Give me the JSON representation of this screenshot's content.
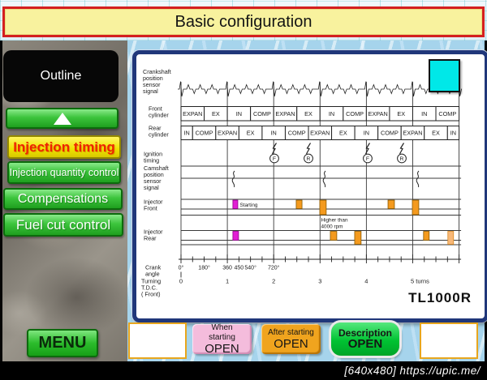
{
  "title": "Basic configuration",
  "sidebar": {
    "outline_label": "Outline",
    "items": [
      {
        "label": "Injection timing",
        "active": true
      },
      {
        "label": "Injection quantity control",
        "active": false
      },
      {
        "label": "Compensations",
        "active": false
      },
      {
        "label": "Fuel cut control",
        "active": false
      }
    ],
    "menu_label": "MENU"
  },
  "icons": {
    "up_arrow": "triangle-up",
    "magnifier": "magnifier-plus"
  },
  "bottom_buttons": [
    {
      "label_top": "When starting",
      "label_bottom": "OPEN",
      "color": "#f4bcdc"
    },
    {
      "label_top": "After starting",
      "label_bottom": "OPEN",
      "color": "#f0a41e"
    },
    {
      "label_top": "Description",
      "label_bottom": "OPEN",
      "color": "#00c232"
    }
  ],
  "watermark": "[640x480] https://upic.me/",
  "diagram": {
    "model_label": "TL1000R",
    "row_labels": [
      {
        "id": "crank",
        "lines": [
          "Crankshaft",
          "position",
          "sensor",
          "signal"
        ]
      },
      {
        "id": "front",
        "lines": [
          "Front",
          "cylinder"
        ]
      },
      {
        "id": "rear",
        "lines": [
          "Rear",
          "cylinder"
        ]
      },
      {
        "id": "ignition",
        "lines": [
          "Ignition",
          "timing"
        ]
      },
      {
        "id": "cam",
        "lines": [
          "Camshaft",
          "position",
          "sensor",
          "signal"
        ]
      },
      {
        "id": "inj_front",
        "lines": [
          "Injector",
          "Front"
        ]
      },
      {
        "id": "inj_rear",
        "lines": [
          "Injector",
          "Rear"
        ]
      },
      {
        "id": "crank_angle",
        "lines": [
          "Crank",
          "angle"
        ]
      },
      {
        "id": "turning",
        "lines": [
          "Turning",
          "T.D.C.",
          "( Front)"
        ]
      }
    ],
    "front_cylinder_cells": [
      {
        "label": "EXPAN",
        "deg": 180
      },
      {
        "label": "EX",
        "deg": 180
      },
      {
        "label": "IN",
        "deg": 180
      },
      {
        "label": "COMP",
        "deg": 180
      },
      {
        "label": "EXPAN",
        "deg": 180
      },
      {
        "label": "EX",
        "deg": 180
      },
      {
        "label": "IN",
        "deg": 180
      },
      {
        "label": "COMP",
        "deg": 180
      },
      {
        "label": "EXPAN",
        "deg": 180
      },
      {
        "label": "EX",
        "deg": 180
      },
      {
        "label": "IN",
        "deg": 180
      },
      {
        "label": "COMP",
        "deg": 180
      }
    ],
    "rear_cylinder_cells": [
      {
        "label": "IN",
        "deg": 90
      },
      {
        "label": "COMP",
        "deg": 180
      },
      {
        "label": "EXPAN",
        "deg": 180
      },
      {
        "label": "EX",
        "deg": 180
      },
      {
        "label": "IN",
        "deg": 180
      },
      {
        "label": "COMP",
        "deg": 180
      },
      {
        "label": "EXPAN",
        "deg": 180
      },
      {
        "label": "EX",
        "deg": 180
      },
      {
        "label": "IN",
        "deg": 180
      },
      {
        "label": "COMP",
        "deg": 180
      },
      {
        "label": "EXPAN",
        "deg": 180
      },
      {
        "label": "EX",
        "deg": 180
      },
      {
        "label": "IN",
        "deg": 90
      }
    ],
    "ignition_events": [
      {
        "label": "F",
        "deg": 725
      },
      {
        "label": "R",
        "deg": 990
      },
      {
        "label": "F",
        "deg": 1450
      },
      {
        "label": "R",
        "deg": 1715
      }
    ],
    "cam_pulses_deg": [
      410,
      1116,
      1841
    ],
    "injector_front_blocks": [
      {
        "deg0": 403,
        "deg1": 441,
        "color": "#e11fd4",
        "stroke": "#90008a",
        "tall": false,
        "note": {
          "lines": [
            "Starting"
          ],
          "pos": "right"
        }
      },
      {
        "deg0": 895,
        "deg1": 940,
        "color": "#f49a1e",
        "stroke": "#8a5a00",
        "tall": false
      },
      {
        "deg0": 1078,
        "deg1": 1128,
        "color": "#f49a1e",
        "stroke": "#8a5a00",
        "tall": true,
        "note": {
          "lines": [
            "Higher than",
            "4000 rpm"
          ],
          "pos": "below"
        }
      },
      {
        "deg0": 1608,
        "deg1": 1658,
        "color": "#f49a1e",
        "stroke": "#8a5a00",
        "tall": false
      },
      {
        "deg0": 1797,
        "deg1": 1847,
        "color": "#f49a1e",
        "stroke": "#8a5a00",
        "tall": true
      }
    ],
    "injector_rear_blocks": [
      {
        "deg0": 403,
        "deg1": 447,
        "color": "#e11fd4",
        "stroke": "#90008a",
        "tall": false
      },
      {
        "deg0": 1160,
        "deg1": 1210,
        "color": "#f49a1e",
        "stroke": "#8a5a00",
        "tall": false
      },
      {
        "deg0": 1349,
        "deg1": 1399,
        "color": "#f49a1e",
        "stroke": "#8a5a00",
        "tall": true
      },
      {
        "deg0": 1884,
        "deg1": 1928,
        "color": "#f49a1e",
        "stroke": "#8a5a00",
        "tall": false
      },
      {
        "deg0": 2073,
        "deg1": 2117,
        "color": "#f8b878",
        "stroke": "#d88820",
        "tall": true
      }
    ],
    "axis": {
      "crank_ticks": [
        {
          "label": "0°",
          "deg": 0
        },
        {
          "label": "180°",
          "deg": 180
        },
        {
          "label": "360",
          "deg": 360
        },
        {
          "label": "450",
          "deg": 450
        },
        {
          "label": "540°",
          "deg": 540
        },
        {
          "label": "720°",
          "deg": 720
        }
      ],
      "turn_labels": [
        {
          "label": "0",
          "turn": 0
        },
        {
          "label": "1",
          "turn": 1
        },
        {
          "label": "2",
          "turn": 2
        },
        {
          "label": "3",
          "turn": 3
        },
        {
          "label": "4",
          "turn": 4
        },
        {
          "label": "5 turns",
          "turn": 5
        }
      ],
      "minor_tick_deg": 90,
      "turns_total": 6
    }
  }
}
